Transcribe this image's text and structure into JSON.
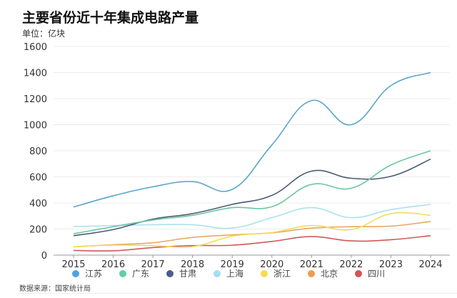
{
  "title": "主要省份近十年集成电路产量",
  "unit": "单位：亿块",
  "source": "数据来源：国家统计局",
  "chart_data": {
    "type": "line",
    "title": "主要省份近十年集成电路产量",
    "ylabel": "单位：亿块",
    "categories": [
      "2015",
      "2016",
      "2017",
      "2018",
      "2019",
      "2020",
      "2021",
      "2022",
      "2023",
      "2024"
    ],
    "ylim": [
      0,
      1600
    ],
    "yticks": [
      0,
      200,
      400,
      600,
      800,
      1000,
      1200,
      1400,
      1600
    ],
    "grid": true,
    "legend": "bottom",
    "smooth": true,
    "series": [
      {
        "name": "江苏",
        "color": "#5aa5cc",
        "legend_color": "#4fa3e3",
        "values": [
          369,
          455,
          524,
          564,
          504,
          845,
          1185,
          1000,
          1300,
          1400
        ]
      },
      {
        "name": "广东",
        "color": "#6cc6a0",
        "legend_color": "#5fd0a4",
        "values": [
          164,
          218,
          269,
          305,
          364,
          371,
          542,
          513,
          691,
          800
        ]
      },
      {
        "name": "甘肃",
        "color": "#4d5b78",
        "legend_color": "#4a5d8c",
        "values": [
          149,
          196,
          276,
          318,
          389,
          458,
          644,
          589,
          604,
          736
        ]
      },
      {
        "name": "上海",
        "color": "#ade0ee",
        "legend_color": "#a9dcf4",
        "values": [
          218,
          227,
          233,
          233,
          207,
          287,
          364,
          287,
          349,
          389
        ]
      },
      {
        "name": "浙江",
        "color": "#f5dc5a",
        "legend_color": "#f7dc4c",
        "values": [
          64,
          76,
          73,
          65,
          145,
          173,
          227,
          196,
          318,
          305
        ]
      },
      {
        "name": "北京",
        "color": "#e8a865",
        "legend_color": "#f29a4e",
        "values": [
          64,
          80,
          95,
          136,
          155,
          171,
          207,
          218,
          222,
          258
        ]
      },
      {
        "name": "四川",
        "color": "#cf5a5a",
        "legend_color": "#d65454",
        "values": [
          36,
          33,
          58,
          73,
          76,
          105,
          142,
          109,
          118,
          149
        ]
      }
    ]
  }
}
